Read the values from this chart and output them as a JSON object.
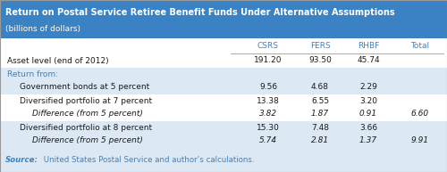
{
  "title": "Return on Postal Service Retiree Benefit Funds Under Alternative Assumptions",
  "subtitle": "(billions of dollars)",
  "header_bg": "#3b82c4",
  "header_text_color": "#ffffff",
  "col_header_color": "#3b82c4",
  "col_headers": [
    "CSRS",
    "FERS",
    "RHBF",
    "Total"
  ],
  "source_color": "#3b82c4",
  "table_bg_light": "#dce9f5",
  "table_bg_white": "#ffffff",
  "rows": [
    {
      "label": "Asset level (end of 2012)",
      "indent": 0,
      "italic": false,
      "values": [
        "191.20",
        "93.50",
        "45.74",
        ""
      ],
      "bg": "#ffffff",
      "section_header": false
    },
    {
      "label": "Return from:",
      "indent": 0,
      "italic": false,
      "values": [
        "",
        "",
        "",
        ""
      ],
      "bg": "#dce9f5",
      "section_header": true
    },
    {
      "label": "Government bonds at 5 percent",
      "indent": 1,
      "italic": false,
      "values": [
        "9.56",
        "4.68",
        "2.29",
        ""
      ],
      "bg": "#dce9f5",
      "section_header": false
    },
    {
      "label": "Diversified portfolio at 7 percent",
      "indent": 1,
      "italic": false,
      "values": [
        "13.38",
        "6.55",
        "3.20",
        ""
      ],
      "bg": "#ffffff",
      "section_header": false
    },
    {
      "label": "Difference (from 5 percent)",
      "indent": 2,
      "italic": true,
      "values": [
        "3.82",
        "1.87",
        "0.91",
        "6.60"
      ],
      "bg": "#ffffff",
      "section_header": false
    },
    {
      "label": "Diversified portfolio at 8 percent",
      "indent": 1,
      "italic": false,
      "values": [
        "15.30",
        "7.48",
        "3.66",
        ""
      ],
      "bg": "#dce9f5",
      "section_header": false
    },
    {
      "label": "Difference (from 5 percent)",
      "indent": 2,
      "italic": true,
      "values": [
        "5.74",
        "2.81",
        "1.37",
        "9.91"
      ],
      "bg": "#dce9f5",
      "section_header": false
    }
  ]
}
